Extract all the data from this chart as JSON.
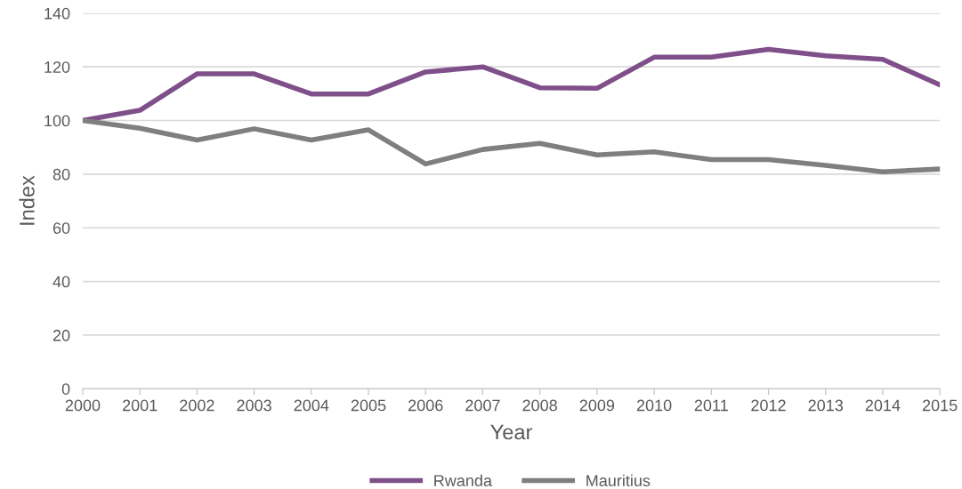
{
  "chart_data": {
    "type": "line",
    "xlabel": "Year",
    "ylabel": "Index",
    "x": [
      2000,
      2001,
      2002,
      2003,
      2004,
      2005,
      2006,
      2007,
      2008,
      2009,
      2010,
      2011,
      2012,
      2013,
      2014,
      2015
    ],
    "series": [
      {
        "name": "Rwanda",
        "color": "#7f4f8a",
        "values": [
          100,
          103.8,
          117.4,
          117.4,
          109.9,
          109.9,
          118.1,
          120,
          112.2,
          112,
          123.6,
          123.6,
          126.5,
          124.1,
          122.8,
          113.3
        ]
      },
      {
        "name": "Mauritius",
        "color": "#7f7f7f",
        "values": [
          100,
          97.1,
          92.7,
          96.9,
          92.7,
          96.5,
          83.8,
          89.2,
          91.5,
          87.2,
          88.3,
          85.4,
          85.4,
          83.3,
          80.9,
          81.9
        ]
      }
    ],
    "xlim": [
      2000,
      2015
    ],
    "xticks": [
      2000,
      2001,
      2002,
      2003,
      2004,
      2005,
      2006,
      2007,
      2008,
      2009,
      2010,
      2011,
      2012,
      2013,
      2014,
      2015
    ],
    "ylim": [
      0,
      140
    ],
    "yticks": [
      0,
      20,
      40,
      60,
      80,
      100,
      120,
      140
    ],
    "grid": "y",
    "legend": "bottom",
    "marker": "none",
    "line_style": "solid"
  }
}
